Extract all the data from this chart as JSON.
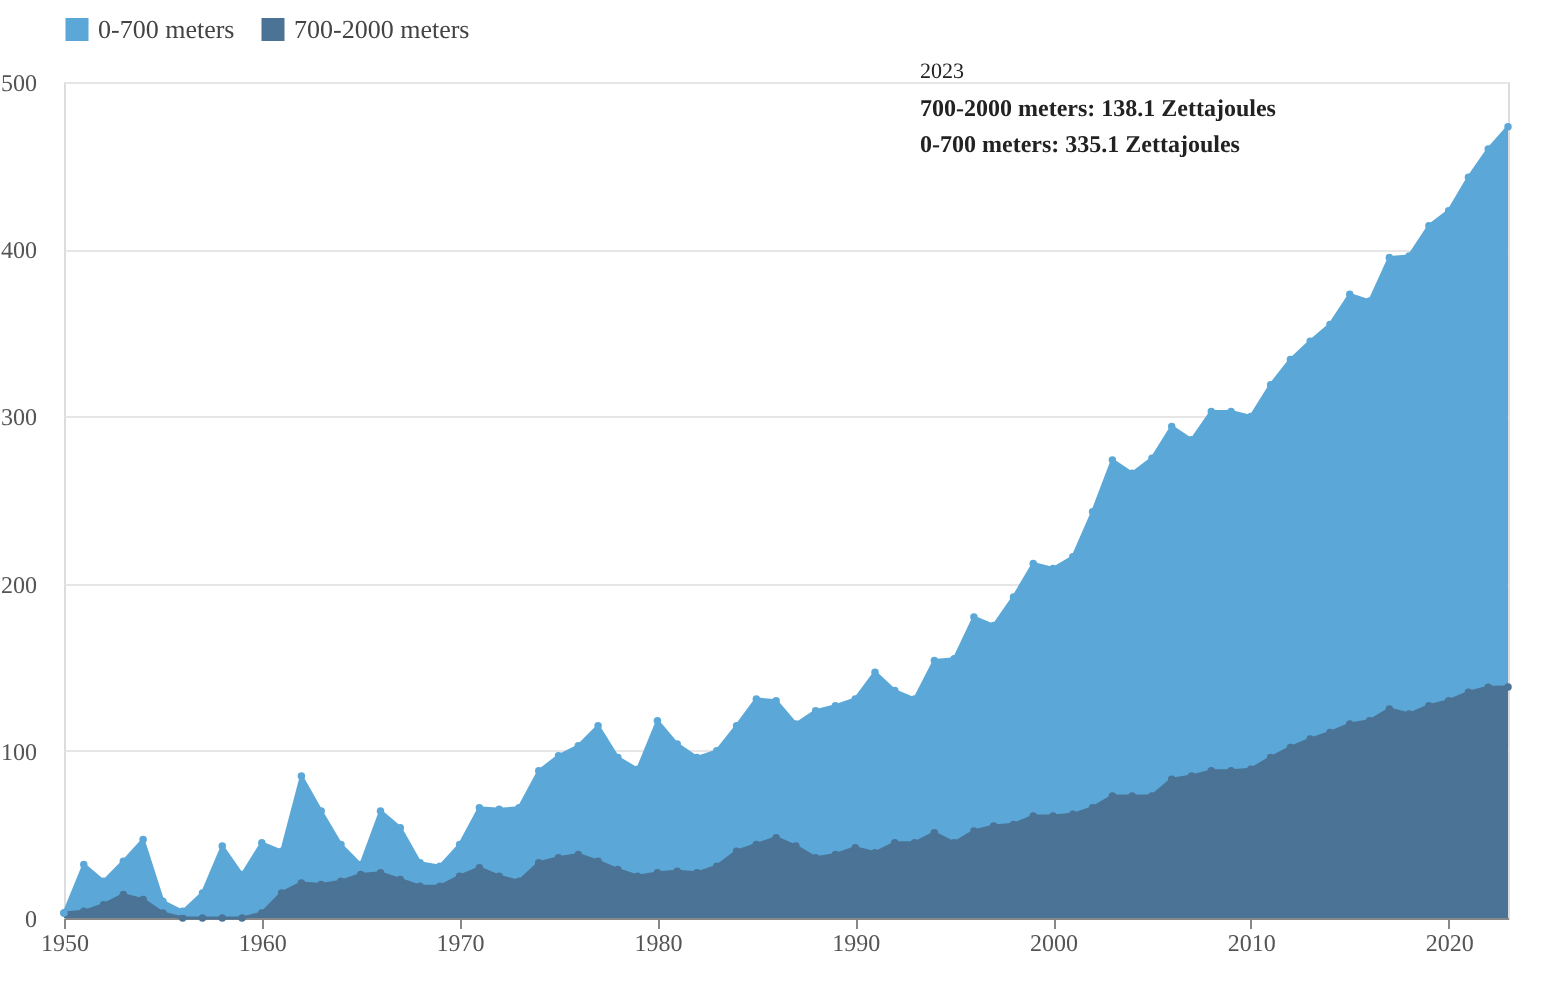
{
  "chart_data": {
    "type": "area",
    "stacked": true,
    "x": [
      1950,
      1951,
      1952,
      1953,
      1954,
      1955,
      1956,
      1957,
      1958,
      1959,
      1960,
      1961,
      1962,
      1963,
      1964,
      1965,
      1966,
      1967,
      1968,
      1969,
      1970,
      1971,
      1972,
      1973,
      1974,
      1975,
      1976,
      1977,
      1978,
      1979,
      1980,
      1981,
      1982,
      1983,
      1984,
      1985,
      1986,
      1987,
      1988,
      1989,
      1990,
      1991,
      1992,
      1993,
      1994,
      1995,
      1996,
      1997,
      1998,
      1999,
      2000,
      2001,
      2002,
      2003,
      2004,
      2005,
      2006,
      2007,
      2008,
      2009,
      2010,
      2011,
      2012,
      2013,
      2014,
      2015,
      2016,
      2017,
      2018,
      2019,
      2020,
      2021,
      2022,
      2023
    ],
    "series": [
      {
        "name": "700-2000 meters",
        "color": "#4a7396",
        "values": [
          3,
          4,
          8,
          14,
          11,
          3,
          0,
          0,
          0,
          0,
          3,
          15,
          21,
          20,
          22,
          26,
          27,
          23,
          19,
          19,
          25,
          30,
          25,
          22,
          33,
          36,
          38,
          34,
          29,
          25,
          27,
          28,
          27,
          31,
          40,
          44,
          48,
          43,
          36,
          38,
          42,
          39,
          45,
          45,
          51,
          45,
          52,
          55,
          56,
          61,
          61,
          62,
          66,
          73,
          73,
          73,
          83,
          85,
          88,
          88,
          89,
          96,
          102,
          107,
          111,
          116,
          118,
          125,
          122,
          127,
          130,
          135,
          138,
          138.1
        ]
      },
      {
        "name": "0-700 meters",
        "color": "#5ba8d8",
        "values": [
          0,
          28,
          14,
          20,
          36,
          7,
          4,
          15,
          43,
          26,
          42,
          25,
          64,
          44,
          22,
          6,
          37,
          31,
          14,
          12,
          19,
          36,
          40,
          44,
          55,
          61,
          65,
          81,
          67,
          64,
          91,
          76,
          69,
          69,
          75,
          87,
          82,
          73,
          88,
          89,
          89,
          108,
          91,
          86,
          103,
          110,
          128,
          120,
          136,
          151,
          148,
          154,
          177,
          201,
          193,
          202,
          211,
          201,
          215,
          215,
          211,
          223,
          232,
          238,
          244,
          257,
          251,
          270,
          274,
          287,
          293,
          308,
          322,
          335.1
        ]
      }
    ],
    "xlim": [
      1950,
      2023
    ],
    "xticks": [
      1950,
      1960,
      1970,
      1980,
      1990,
      2000,
      2010,
      2020
    ],
    "ylim": [
      0,
      500
    ],
    "yticks": [
      0,
      100,
      200,
      300,
      400,
      500
    ],
    "grid": "y",
    "legend": "top",
    "marker": "circle",
    "annotations": [
      "2023",
      "700-2000 meters: 138.1 Zettajoules",
      "0-700 meters: 335.1 Zettajoules"
    ]
  }
}
